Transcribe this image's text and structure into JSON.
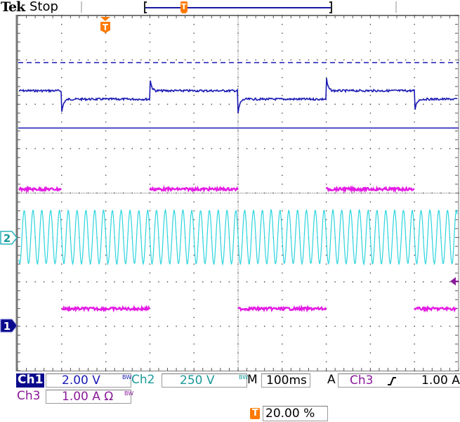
{
  "header": {
    "brand": "Tek",
    "acquisition_state": "Stop"
  },
  "markers": {
    "trigger_position_icon": "trigger-T-marker",
    "ch1_marker": "1",
    "ch2_marker": "2",
    "trigger_level_icon": "trigger-level-arrow"
  },
  "readouts": {
    "ch1": {
      "label": "Ch1",
      "scale": "2.00 V",
      "bw_limit": "BW"
    },
    "ch2": {
      "label": "Ch2",
      "scale": "250 V",
      "bw_limit": "BW"
    },
    "ch3": {
      "label": "Ch3",
      "scale": "1.00 A Ω",
      "bw_limit": "BW"
    },
    "timebase": {
      "label": "M",
      "value": "100ms"
    },
    "trigger": {
      "mode": "A",
      "source": "Ch3",
      "slope_icon": "rising-edge",
      "level": "1.00 A"
    },
    "trigger_position": {
      "icon": "T",
      "value": "20.00 %"
    }
  },
  "colors": {
    "ch1": "#1a1ab4",
    "ch2": "#2bd4de",
    "ch3": "#e41ce4",
    "trigger": "#ff7a00",
    "ch1_label_bg": "#0a0a8c",
    "ch2_text": "#1a9a9a",
    "ch3_text": "#8a1a9a"
  },
  "chart_data": {
    "type": "line",
    "title": "Oscilloscope capture",
    "xlabel": "Time (100 ms/div)",
    "ylabel": "",
    "grid": true,
    "divisions": {
      "x": 10,
      "y": 8
    },
    "timebase_per_div": "100ms",
    "trigger_position_percent": 20.0,
    "series": [
      {
        "name": "Ch1 (2.00 V/div)",
        "shape": "square-ish with overshoot spikes at transitions",
        "high_div": 1.3,
        "low_div": 1.0,
        "period_div": 4.0,
        "color": "#1a1ab4"
      },
      {
        "name": "Ch2 (250 V/div)",
        "shape": "sine",
        "amplitude_div": 1.8,
        "cycles_visible": 50,
        "color": "#2bd4de"
      },
      {
        "name": "Ch3 (1.00 A/div)",
        "shape": "square wave (two displays: upper & lower)",
        "period_div": 4.0,
        "duty": 0.5,
        "color": "#e41ce4"
      }
    ],
    "reference_lines": [
      {
        "name": "Ch1 dashed reference",
        "y_div_from_top": 1.35,
        "style": "dashed",
        "color": "#1a1ab4"
      },
      {
        "name": "Ch1 solid reference",
        "y_div_from_top": 3.25,
        "style": "solid",
        "color": "#1a1ab4"
      }
    ]
  }
}
